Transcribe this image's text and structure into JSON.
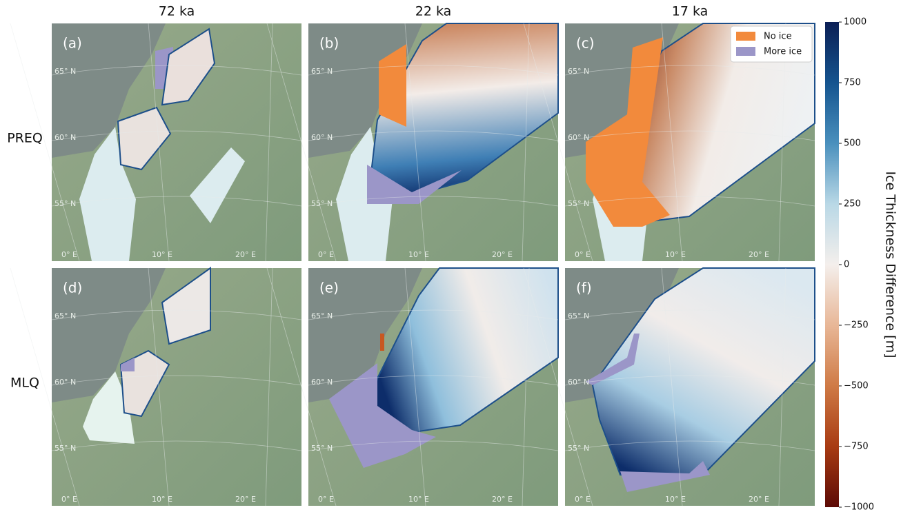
{
  "column_titles": [
    "72 ka",
    "22 ka",
    "17 ka"
  ],
  "row_labels": [
    "PREQ",
    "MLQ"
  ],
  "panel_labels": [
    "(a)",
    "(b)",
    "(c)",
    "(d)",
    "(e)",
    "(f)"
  ],
  "legend": [
    {
      "label": "No ice",
      "color": "#f28a3c"
    },
    {
      "label": "More ice",
      "color": "#9b96c8"
    }
  ],
  "map_labels": {
    "lat": [
      "65° N",
      "60° N",
      "55° N"
    ],
    "lon": [
      "0° E",
      "10° E",
      "20° E"
    ]
  },
  "colorbar": {
    "label": "Ice Thickness Difference [m]",
    "lim": [
      -1000,
      1000
    ],
    "ticks": [
      1000,
      750,
      500,
      250,
      0,
      {
        "value": -250,
        "label": "−250"
      },
      {
        "value": -500,
        "label": "−500"
      },
      {
        "value": -750,
        "label": "−750"
      },
      {
        "value": -1000,
        "label": "−1000"
      }
    ]
  }
}
